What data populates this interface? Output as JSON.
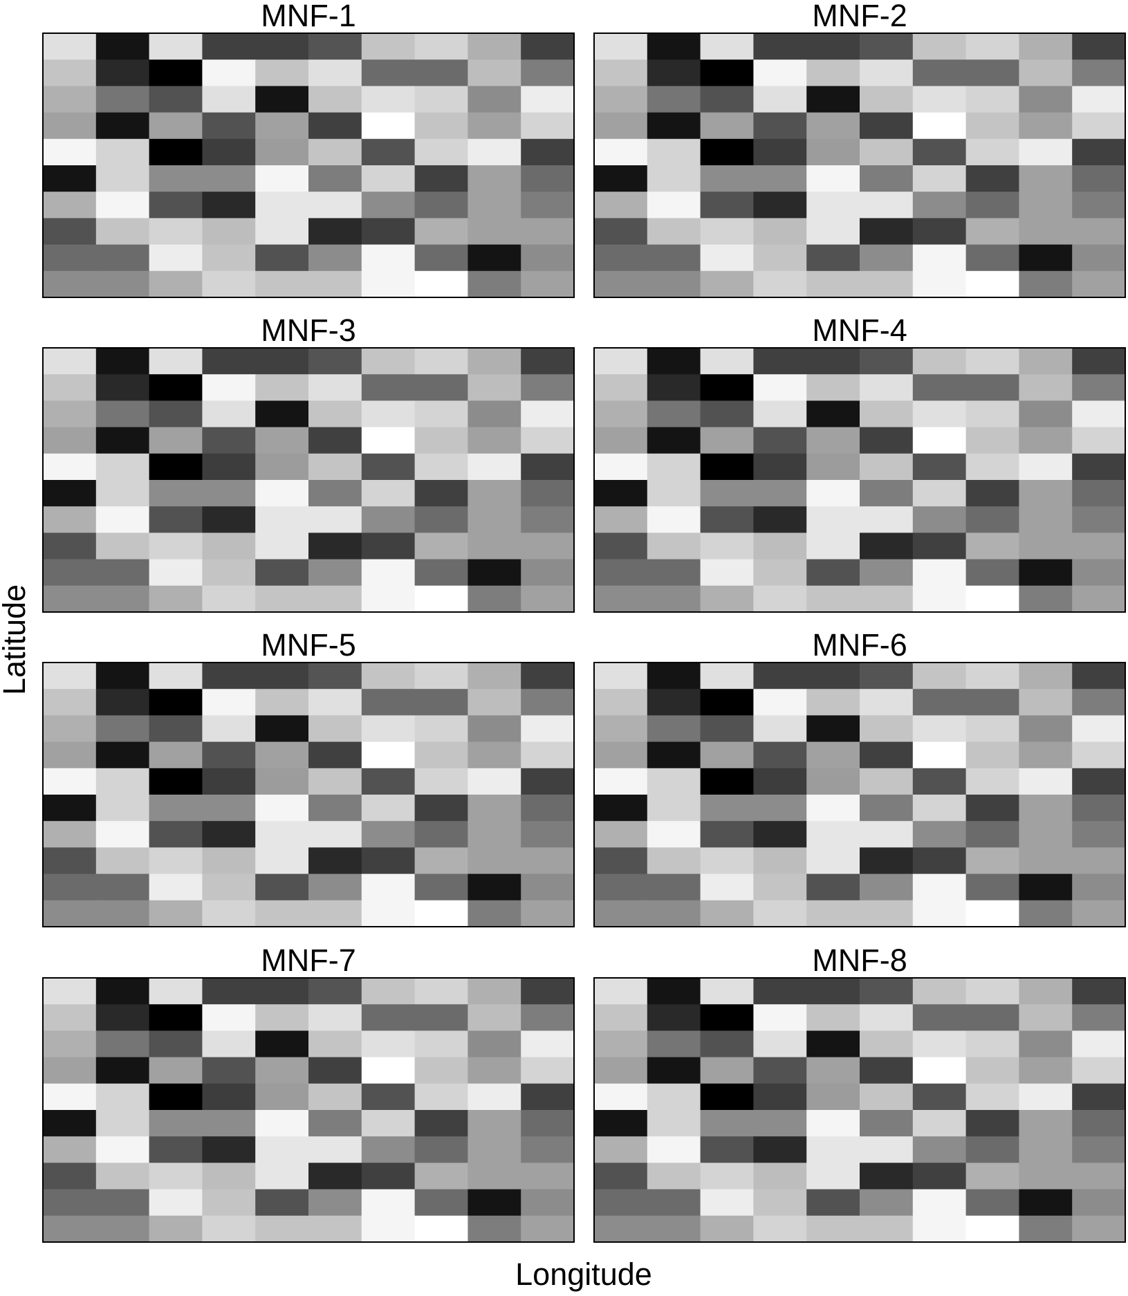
{
  "chart_data": {
    "type": "heatmap",
    "xlabel": "Longitude",
    "ylabel": "Latitude",
    "colormap": "grayscale",
    "cmap_colors": [
      "#000000",
      "#ffffff"
    ],
    "value_range": [
      0,
      1
    ],
    "rows": 10,
    "cols": 10,
    "panels": [
      {
        "title": "MNF-1",
        "grid_ref": "shared"
      },
      {
        "title": "MNF-2",
        "grid_ref": "shared"
      },
      {
        "title": "MNF-3",
        "grid_ref": "shared"
      },
      {
        "title": "MNF-4",
        "grid_ref": "shared"
      },
      {
        "title": "MNF-5",
        "grid_ref": "shared"
      },
      {
        "title": "MNF-6",
        "grid_ref": "shared"
      },
      {
        "title": "MNF-7",
        "grid_ref": "shared"
      },
      {
        "title": "MNF-8",
        "grid_ref": "shared"
      }
    ],
    "shared_grid": [
      [
        0.88,
        0.08,
        0.88,
        0.25,
        0.25,
        0.33,
        0.77,
        0.83,
        0.69,
        0.25
      ],
      [
        0.77,
        0.16,
        0.0,
        0.96,
        0.77,
        0.88,
        0.42,
        0.42,
        0.74,
        0.49
      ],
      [
        0.69,
        0.46,
        0.32,
        0.88,
        0.08,
        0.77,
        0.88,
        0.83,
        0.55,
        0.93
      ],
      [
        0.63,
        0.08,
        0.63,
        0.32,
        0.63,
        0.25,
        1.0,
        0.77,
        0.63,
        0.83
      ],
      [
        0.96,
        0.83,
        0.0,
        0.24,
        0.61,
        0.77,
        0.32,
        0.83,
        0.93,
        0.25
      ],
      [
        0.08,
        0.83,
        0.55,
        0.55,
        0.96,
        0.49,
        0.83,
        0.25,
        0.63,
        0.42
      ],
      [
        0.69,
        0.96,
        0.32,
        0.16,
        0.9,
        0.9,
        0.55,
        0.42,
        0.63,
        0.49
      ],
      [
        0.32,
        0.77,
        0.83,
        0.74,
        0.9,
        0.16,
        0.25,
        0.69,
        0.63,
        0.63
      ],
      [
        0.42,
        0.42,
        0.93,
        0.77,
        0.32,
        0.55,
        0.96,
        0.42,
        0.08,
        0.55
      ],
      [
        0.55,
        0.55,
        0.69,
        0.83,
        0.77,
        0.77,
        0.96,
        1.0,
        0.49,
        0.63
      ]
    ]
  }
}
